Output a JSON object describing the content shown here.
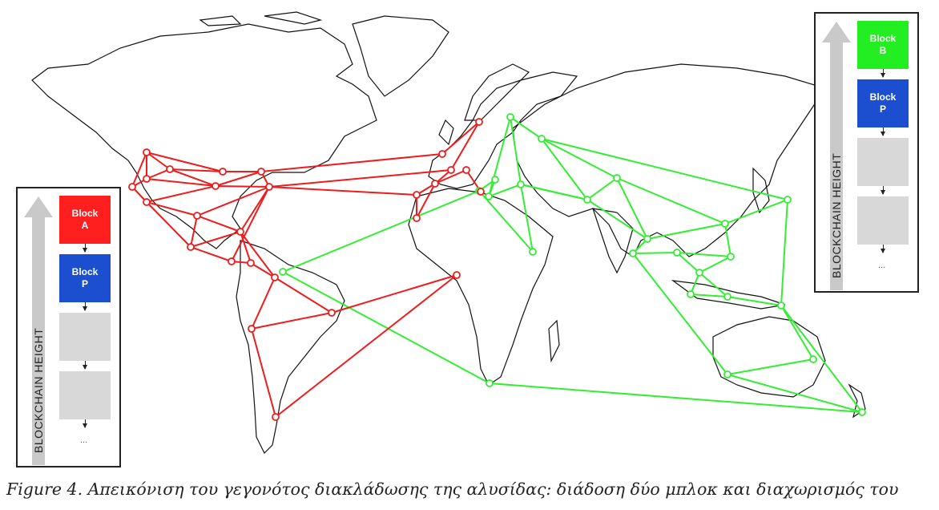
{
  "left_inset": {
    "axis_label": "BLOCKCHAIN HEIGHT",
    "top_block": {
      "label": "Block\nA",
      "color": "#ff1f1f"
    },
    "second_block": {
      "label": "Block\nP",
      "color": "#1b4fd0"
    },
    "ellipsis": "..."
  },
  "right_inset": {
    "axis_label": "BLOCKCHAIN HEIGHT",
    "top_block": {
      "label": "Block\nB",
      "color": "#22ee22"
    },
    "second_block": {
      "label": "Block\nP",
      "color": "#1b4fd0"
    },
    "ellipsis": "..."
  },
  "network": {
    "red_color": "#ee1c1c",
    "green_color": "#33ee33"
  },
  "caption": "Figure 4. Απεικόνιση του γεγονότος διακλάδωσης της αλυσίδας: διάδοση δύο μπλοκ και διαχωρισμός του"
}
